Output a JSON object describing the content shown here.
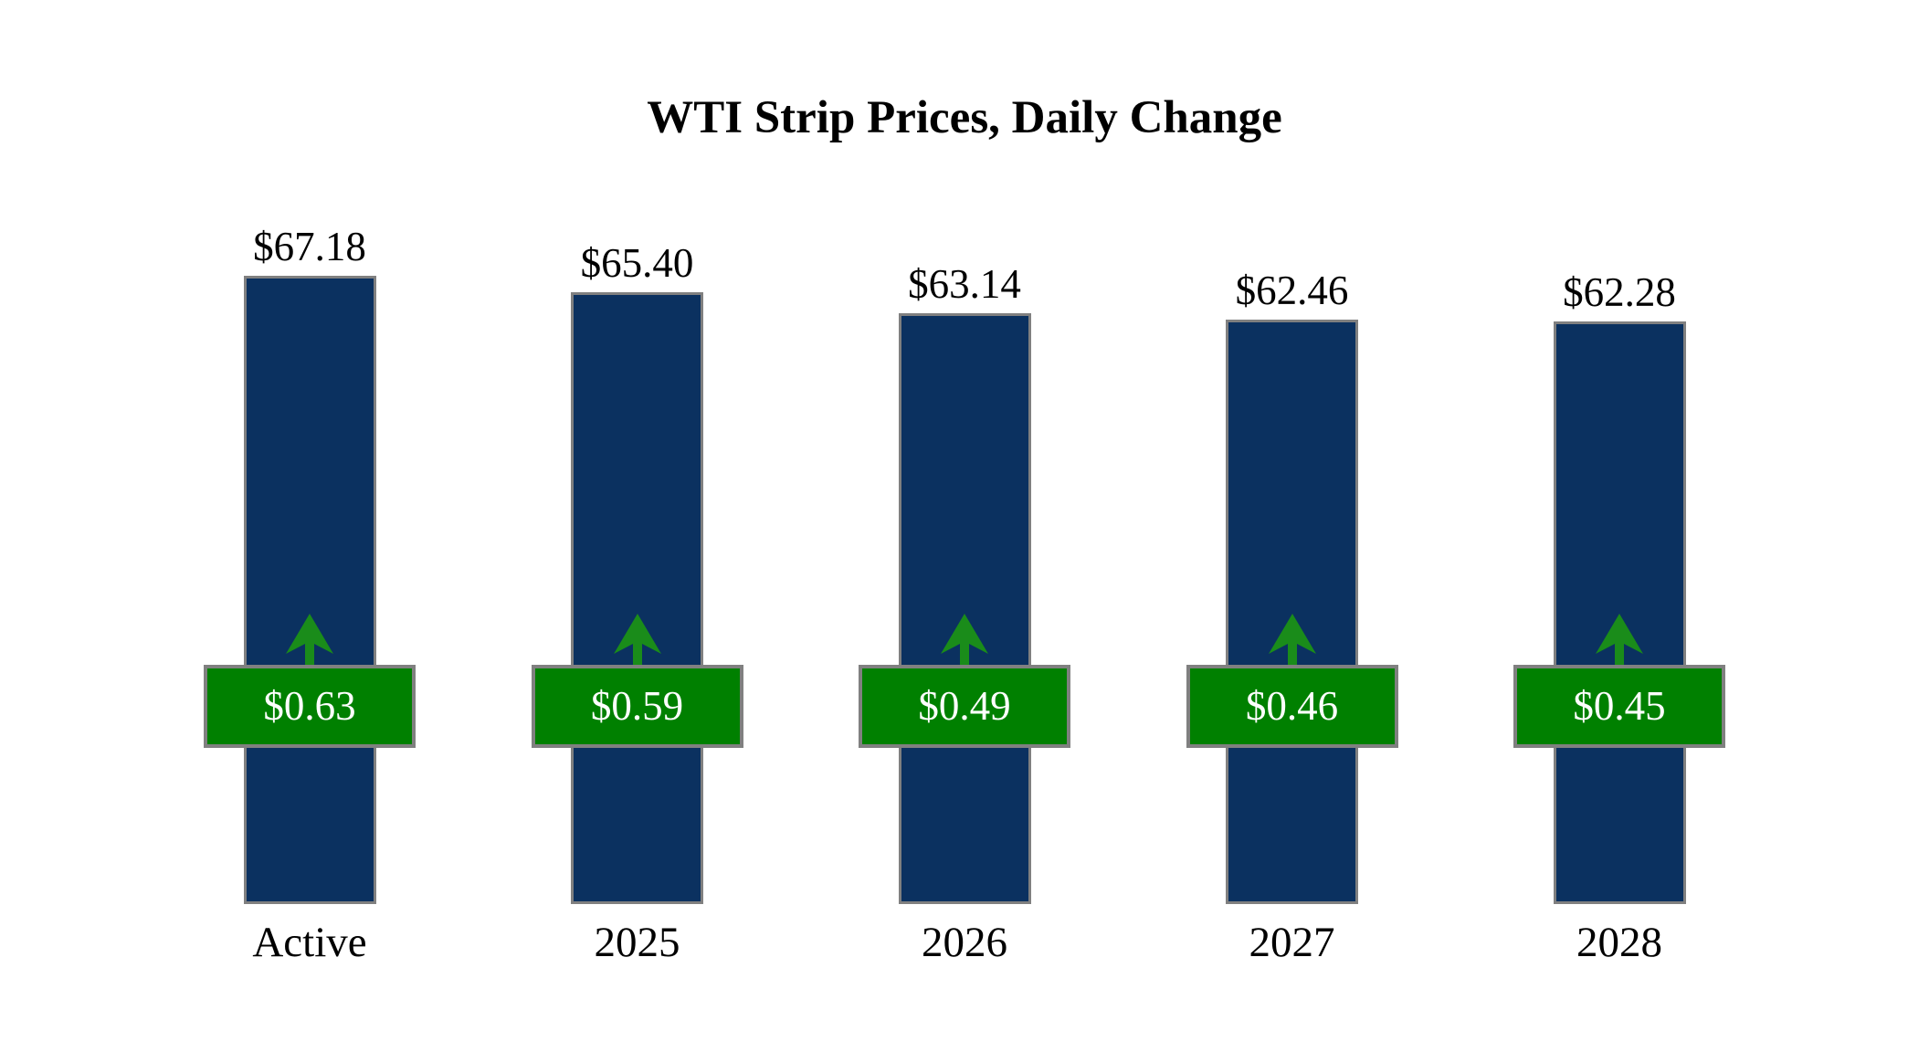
{
  "title": "WTI Strip Prices, Daily Change",
  "colors": {
    "background": "#FFFFFF",
    "bar_fill": "#0B3160",
    "bar_border": "#808080",
    "badge_fill": "#008000",
    "badge_border": "#808080",
    "badge_text": "#FFFFFF",
    "arrow": "#1A8C1A",
    "label_text": "#000000"
  },
  "chart_data": {
    "type": "bar",
    "title": "WTI Strip Prices, Daily Change",
    "categories": [
      "Active",
      "2025",
      "2026",
      "2027",
      "2028"
    ],
    "series": [
      {
        "name": "WTI Strip Price",
        "values": [
          67.18,
          65.4,
          63.14,
          62.46,
          62.28
        ],
        "labels": [
          "$67.18",
          "$65.40",
          "$63.14",
          "$62.46",
          "$62.28"
        ]
      },
      {
        "name": "Daily Change",
        "values": [
          0.63,
          0.59,
          0.49,
          0.46,
          0.45
        ],
        "labels": [
          "$0.63",
          "$0.59",
          "$0.49",
          "$0.46",
          "$0.45"
        ],
        "direction": "up"
      }
    ],
    "xlabel": "",
    "ylabel": "",
    "ylim": [
      0,
      67.18
    ],
    "grid": false,
    "legend": false,
    "axes_hidden": true
  }
}
